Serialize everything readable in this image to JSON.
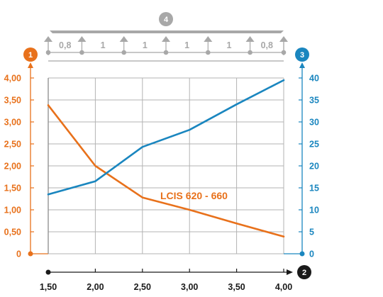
{
  "colors": {
    "left_axis": "#e8711b",
    "right_axis": "#1a86bf",
    "x_axis": "#1a1a1a",
    "top_schema": "#a8a8a8",
    "grid": "#b3b3b3"
  },
  "badges": {
    "left": "1",
    "right": "3",
    "top": "4",
    "x": "2"
  },
  "span_schema": {
    "spans": [
      "0,8",
      "1",
      "1",
      "1",
      "1",
      "0,8"
    ]
  },
  "chart_data": {
    "type": "line",
    "x_ticks": [
      "1,50",
      "2,00",
      "2,50",
      "3,00",
      "3,50",
      "4,00"
    ],
    "xlim": [
      1.5,
      4.0
    ],
    "y_left_ticks": [
      "0",
      "0,50",
      "1,00",
      "1,50",
      "2,00",
      "2,50",
      "3,00",
      "3,50",
      "4,00"
    ],
    "y_left_lim": [
      0,
      4.0
    ],
    "y_right_ticks": [
      "0",
      "5",
      "10",
      "15",
      "20",
      "25",
      "30",
      "35",
      "40"
    ],
    "y_right_lim": [
      0,
      40
    ],
    "grid": true,
    "annotation": "LCIS 620 - 660",
    "series": [
      {
        "axis": "left",
        "color": "#e8711b",
        "x": [
          1.5,
          2.0,
          2.5,
          3.0,
          3.5,
          4.0
        ],
        "values": [
          3.38,
          2.0,
          1.28,
          1.0,
          0.69,
          0.39
        ]
      },
      {
        "axis": "right",
        "color": "#1a86bf",
        "x": [
          1.5,
          2.0,
          2.5,
          3.0,
          3.5,
          4.0
        ],
        "values": [
          13.5,
          16.5,
          24.3,
          28.2,
          34.0,
          39.5
        ]
      }
    ]
  }
}
